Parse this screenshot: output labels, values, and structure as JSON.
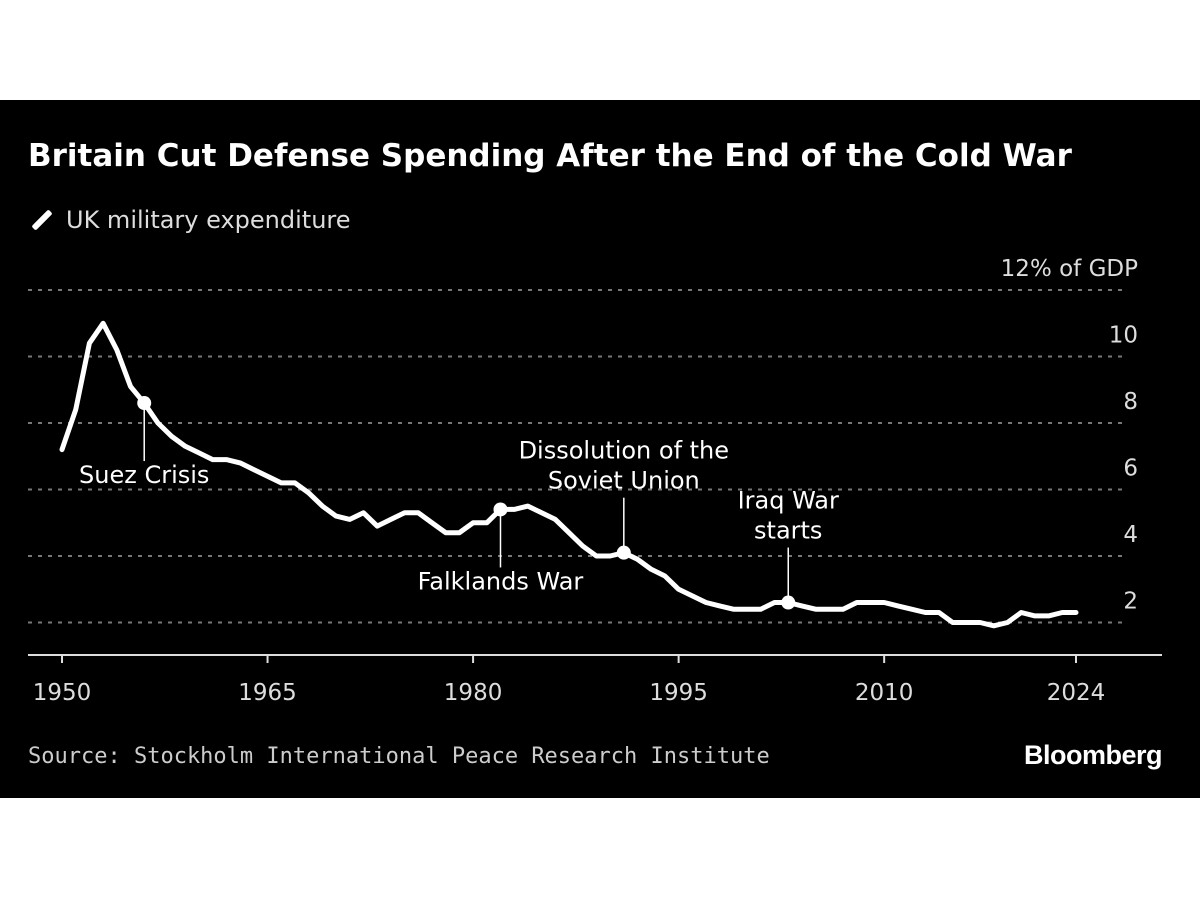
{
  "chart_data": {
    "type": "line",
    "title": "Britain Cut Defense Spending After the End of the Cold War",
    "ylabel": "% of GDP",
    "ylim": [
      1,
      12
    ],
    "xlim": [
      1950,
      2024
    ],
    "grid": true,
    "legend": "top-left",
    "y_ticks": [
      {
        "value": 12,
        "label": "12% of GDP"
      },
      {
        "value": 10,
        "label": "10"
      },
      {
        "value": 8,
        "label": "8"
      },
      {
        "value": 6,
        "label": "6"
      },
      {
        "value": 4,
        "label": "4"
      },
      {
        "value": 2,
        "label": "2"
      }
    ],
    "x_ticks": [
      {
        "value": 1950,
        "label": "1950"
      },
      {
        "value": 1965,
        "label": "1965"
      },
      {
        "value": 1980,
        "label": "1980"
      },
      {
        "value": 1995,
        "label": "1995"
      },
      {
        "value": 2010,
        "label": "2010"
      },
      {
        "value": 2024,
        "label": "2024"
      }
    ],
    "series": [
      {
        "name": "UK military expenditure",
        "color": "#ffffff",
        "x": [
          1950,
          1951,
          1952,
          1953,
          1954,
          1955,
          1956,
          1957,
          1958,
          1959,
          1960,
          1961,
          1962,
          1963,
          1964,
          1965,
          1966,
          1967,
          1968,
          1969,
          1970,
          1971,
          1972,
          1973,
          1974,
          1975,
          1976,
          1977,
          1978,
          1979,
          1980,
          1981,
          1982,
          1983,
          1984,
          1985,
          1986,
          1987,
          1988,
          1989,
          1990,
          1991,
          1992,
          1993,
          1994,
          1995,
          1996,
          1997,
          1998,
          1999,
          2000,
          2001,
          2002,
          2003,
          2004,
          2005,
          2006,
          2007,
          2008,
          2009,
          2010,
          2011,
          2012,
          2013,
          2014,
          2015,
          2016,
          2017,
          2018,
          2019,
          2020,
          2021,
          2022,
          2023,
          2024
        ],
        "values": [
          7.2,
          8.4,
          10.4,
          11.0,
          10.2,
          9.1,
          8.6,
          8.0,
          7.6,
          7.3,
          7.1,
          6.9,
          6.9,
          6.8,
          6.6,
          6.4,
          6.2,
          6.2,
          5.9,
          5.5,
          5.2,
          5.1,
          5.3,
          4.9,
          5.1,
          5.3,
          5.3,
          5.0,
          4.7,
          4.7,
          5.0,
          5.0,
          5.4,
          5.4,
          5.5,
          5.3,
          5.1,
          4.7,
          4.3,
          4.0,
          4.0,
          4.1,
          3.9,
          3.6,
          3.4,
          3.0,
          2.8,
          2.6,
          2.5,
          2.4,
          2.4,
          2.4,
          2.6,
          2.6,
          2.5,
          2.4,
          2.4,
          2.4,
          2.6,
          2.6,
          2.6,
          2.5,
          2.4,
          2.3,
          2.3,
          2.0,
          2.0,
          2.0,
          1.9,
          2.0,
          2.3,
          2.2,
          2.2,
          2.3,
          2.3
        ]
      }
    ],
    "annotations": [
      {
        "year": 1956,
        "lines": [
          "Suez Crisis"
        ],
        "position": "below"
      },
      {
        "year": 1982,
        "lines": [
          "Falklands War"
        ],
        "position": "below"
      },
      {
        "year": 1991,
        "lines": [
          "Dissolution of the",
          "Soviet Union"
        ],
        "position": "above"
      },
      {
        "year": 2003,
        "lines": [
          "Iraq War",
          "starts"
        ],
        "position": "above"
      }
    ]
  },
  "legend_label": "UK military expenditure",
  "source": "Source: Stockholm International Peace Research Institute",
  "logo": "Bloomberg",
  "colors": {
    "background": "#000000",
    "line": "#ffffff",
    "grid": "#777777",
    "text": "#dddddd"
  }
}
